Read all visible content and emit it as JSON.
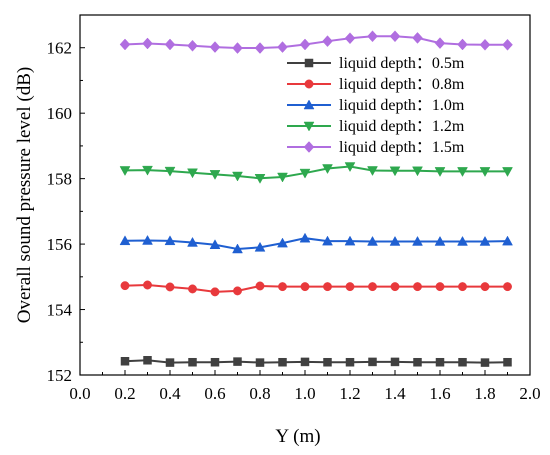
{
  "chart_data": {
    "type": "line",
    "xlabel": "Y (m)",
    "ylabel": "Overall sound pressure level (dB)",
    "xlim": [
      0.0,
      2.0
    ],
    "ylim": [
      152,
      163
    ],
    "x_ticks": [
      "0.0",
      "0.2",
      "0.4",
      "0.6",
      "0.8",
      "1.0",
      "1.2",
      "1.4",
      "1.6",
      "1.8",
      "2.0"
    ],
    "y_ticks": [
      "152",
      "154",
      "156",
      "158",
      "160",
      "162"
    ],
    "x": [
      0.2,
      0.3,
      0.4,
      0.5,
      0.6,
      0.7,
      0.8,
      0.9,
      1.0,
      1.1,
      1.2,
      1.3,
      1.4,
      1.5,
      1.6,
      1.7,
      1.8,
      1.9
    ],
    "legend_position": "top-right",
    "grid": false,
    "series": [
      {
        "name": "liquid depth：0.5m",
        "color": "#404040",
        "marker": "square",
        "values": [
          152.42,
          152.45,
          152.38,
          152.39,
          152.39,
          152.41,
          152.38,
          152.39,
          152.4,
          152.39,
          152.39,
          152.4,
          152.4,
          152.39,
          152.39,
          152.39,
          152.38,
          152.39
        ]
      },
      {
        "name": "liquid depth：0.8m",
        "color": "#e8393c",
        "marker": "circle",
        "values": [
          154.73,
          154.75,
          154.69,
          154.63,
          154.54,
          154.57,
          154.72,
          154.7,
          154.7,
          154.7,
          154.7,
          154.7,
          154.7,
          154.7,
          154.7,
          154.7,
          154.7,
          154.7
        ]
      },
      {
        "name": "liquid depth：1.0m",
        "color": "#1f5fd1",
        "marker": "triangle-up",
        "values": [
          156.1,
          156.11,
          156.1,
          156.05,
          155.98,
          155.85,
          155.9,
          156.03,
          156.18,
          156.09,
          156.09,
          156.08,
          156.08,
          156.08,
          156.08,
          156.08,
          156.08,
          156.09
        ]
      },
      {
        "name": "liquid depth：1.2m",
        "color": "#2ea84e",
        "marker": "triangle-down",
        "values": [
          158.25,
          158.26,
          158.23,
          158.18,
          158.13,
          158.08,
          158.01,
          158.05,
          158.17,
          158.31,
          158.37,
          158.25,
          158.24,
          158.24,
          158.22,
          158.22,
          158.22,
          158.22
        ]
      },
      {
        "name": "liquid depth：1.5m",
        "color": "#b06ee0",
        "marker": "diamond",
        "values": [
          162.1,
          162.13,
          162.1,
          162.06,
          162.02,
          161.99,
          161.99,
          162.02,
          162.1,
          162.2,
          162.29,
          162.35,
          162.35,
          162.3,
          162.14,
          162.1,
          162.09,
          162.09
        ]
      }
    ]
  }
}
